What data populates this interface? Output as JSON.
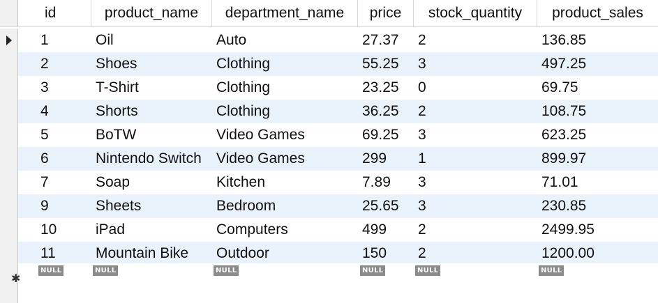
{
  "grid": {
    "columns": {
      "id": "id",
      "product_name": "product_name",
      "department_name": "department_name",
      "price": "price",
      "stock_quantity": "stock_quantity",
      "product_sales": "product_sales"
    },
    "rows": [
      {
        "id": "1",
        "product_name": "Oil",
        "department_name": "Auto",
        "price": "27.37",
        "stock_quantity": "2",
        "product_sales": "136.85"
      },
      {
        "id": "2",
        "product_name": "Shoes",
        "department_name": "Clothing",
        "price": "55.25",
        "stock_quantity": "3",
        "product_sales": "497.25"
      },
      {
        "id": "3",
        "product_name": "T-Shirt",
        "department_name": "Clothing",
        "price": "23.25",
        "stock_quantity": "0",
        "product_sales": "69.75"
      },
      {
        "id": "4",
        "product_name": "Shorts",
        "department_name": "Clothing",
        "price": "36.25",
        "stock_quantity": "2",
        "product_sales": "108.75"
      },
      {
        "id": "5",
        "product_name": "BoTW",
        "department_name": "Video Games",
        "price": "69.25",
        "stock_quantity": "3",
        "product_sales": "623.25"
      },
      {
        "id": "6",
        "product_name": "Nintendo Switch",
        "department_name": "Video Games",
        "price": "299",
        "stock_quantity": "1",
        "product_sales": "899.97"
      },
      {
        "id": "7",
        "product_name": "Soap",
        "department_name": "Kitchen",
        "price": "7.89",
        "stock_quantity": "3",
        "product_sales": "71.01"
      },
      {
        "id": "9",
        "product_name": "Sheets",
        "department_name": "Bedroom",
        "price": "25.65",
        "stock_quantity": "3",
        "product_sales": "230.85"
      },
      {
        "id": "10",
        "product_name": "iPad",
        "department_name": "Computers",
        "price": "499",
        "stock_quantity": "2",
        "product_sales": "2499.95"
      },
      {
        "id": "11",
        "product_name": "Mountain Bike",
        "department_name": "Outdoor",
        "price": "150",
        "stock_quantity": "2",
        "product_sales": "1200.00"
      }
    ],
    "null_label": "NULL",
    "current_row_marker": "current-row-arrow",
    "new_row_marker": "✱",
    "colors": {
      "alt_row": "#e9f1fb",
      "null_badge": "#8a8a8a"
    }
  }
}
